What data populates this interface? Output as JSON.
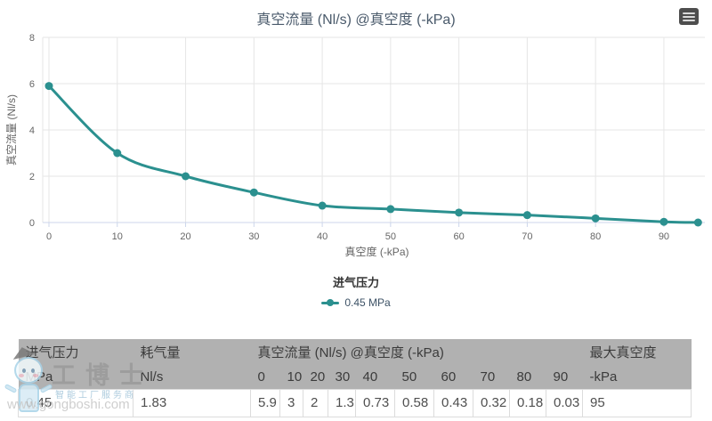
{
  "page": {
    "title": "真空流量 (Nl/s) @真空度 (-kPa)"
  },
  "chart_data": {
    "type": "line",
    "title": "真空流量 (Nl/s) @真空度 (-kPa)",
    "xlabel": "真空度 (-kPa)",
    "ylabel": "真空流量 (Nl/s)",
    "x": [
      0,
      10,
      20,
      30,
      40,
      50,
      60,
      70,
      80,
      90,
      95
    ],
    "series": [
      {
        "name": "0.45 MPa",
        "color": "#2b908f",
        "values": [
          5.9,
          3,
          2,
          1.3,
          0.73,
          0.58,
          0.43,
          0.32,
          0.18,
          0.03,
          0
        ]
      }
    ],
    "xticks": [
      0,
      10,
      20,
      30,
      40,
      50,
      60,
      70,
      80,
      90
    ],
    "yticks": [
      0,
      2,
      4,
      6,
      8
    ],
    "xlim": [
      0,
      96
    ],
    "ylim": [
      0,
      8
    ],
    "grid": true,
    "legend_position": "bottom",
    "legend_title": "进气压力"
  },
  "table": {
    "header_row1": [
      {
        "label": "进气压力",
        "colspan": 1
      },
      {
        "label": "耗气量",
        "colspan": 1
      },
      {
        "label": "真空流量 (Nl/s) @真空度 (-kPa)",
        "colspan": 10
      },
      {
        "label": "最大真空度",
        "colspan": 1
      }
    ],
    "header_row2": [
      "MPa",
      "Nl/s",
      "0",
      "10",
      "20",
      "30",
      "40",
      "50",
      "60",
      "70",
      "80",
      "90",
      "-kPa"
    ],
    "rows": [
      [
        "0.45",
        "1.83",
        "5.9",
        "3",
        "2",
        "1.3",
        "0.73",
        "0.58",
        "0.43",
        "0.32",
        "0.18",
        "0.03",
        "95"
      ]
    ]
  },
  "watermark": {
    "brand": "工博士",
    "slogan": "智能工厂服务商",
    "url": "www.gongboshi.com"
  },
  "colors": {
    "accent_teal": "#2b908f",
    "title_text": "#4a5a6b",
    "table_header_bg": "#b1b1b1",
    "grid_line": "#e6e6e6",
    "axis_line": "#ccd6eb"
  }
}
